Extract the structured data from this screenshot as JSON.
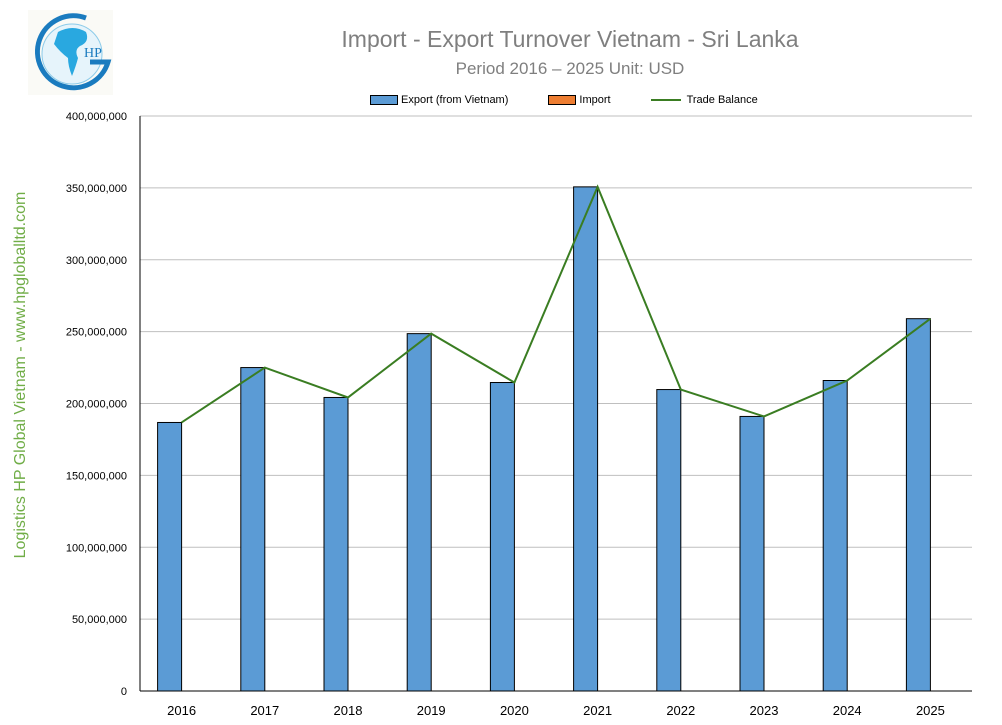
{
  "logo": {
    "text": "HP",
    "colors": {
      "ring": "#1a7bbf",
      "globe": "#29a8e0"
    }
  },
  "watermark": "Logistics HP Global Vietnam - www.hpgloballtd.com",
  "chart_data": {
    "type": "bar",
    "title": "Import - Export Turnover Vietnam - Sri Lanka",
    "subtitle": "Period 2016 – 2025  Unit: USD",
    "categories": [
      "2016",
      "2017",
      "2018",
      "2019",
      "2020",
      "2021",
      "2022",
      "2023",
      "2024",
      "2025"
    ],
    "series": [
      {
        "name": "Export (from Vietnam)",
        "kind": "bar",
        "color": "#5b9bd5",
        "values": [
          186800000,
          225000000,
          204200000,
          248600000,
          214600000,
          350700000,
          209700000,
          191000000,
          216000000,
          259000000
        ]
      },
      {
        "name": "Import",
        "kind": "bar",
        "color": "#ed7d31",
        "values": [
          0,
          0,
          0,
          0,
          0,
          0,
          0,
          0,
          0,
          0
        ]
      },
      {
        "name": "Trade Balance",
        "kind": "line",
        "color": "#3a7d22",
        "values": [
          186800000,
          225000000,
          204200000,
          248600000,
          214600000,
          350700000,
          209700000,
          191000000,
          216000000,
          259000000
        ]
      }
    ],
    "ylim": [
      0,
      400000000
    ],
    "yticks": [
      "0",
      "50,000,000",
      "100,000,000",
      "150,000,000",
      "200,000,000",
      "250,000,000",
      "300,000,000",
      "350,000,000",
      "400,000,000"
    ],
    "grid": true,
    "legend": "top"
  }
}
